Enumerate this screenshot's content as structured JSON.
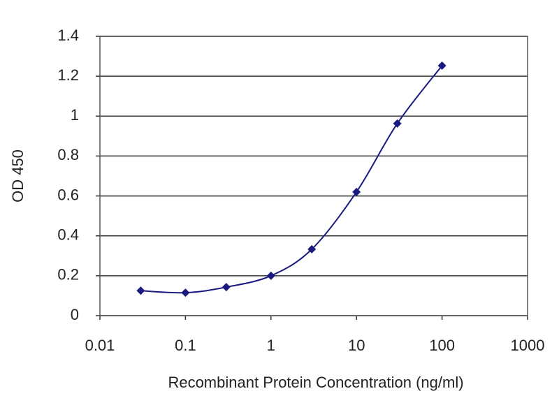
{
  "chart_data": {
    "type": "line",
    "xlabel": "Recombinant Protein Concentration (ng/ml)",
    "ylabel": "OD 450",
    "x": [
      0.03,
      0.1,
      0.3,
      1,
      3,
      10,
      30,
      100
    ],
    "series": [
      {
        "name": "OD 450",
        "color": "#1a1a80",
        "values": [
          0.125,
          0.115,
          0.143,
          0.2,
          0.333,
          0.62,
          0.963,
          1.253
        ]
      }
    ],
    "xscale": "log",
    "xlim": [
      0.01,
      1000
    ],
    "xticks": [
      0.01,
      0.1,
      1,
      10,
      100,
      1000
    ],
    "ylim": [
      0,
      1.4
    ],
    "yticks": [
      0,
      0.2,
      0.4,
      0.6,
      0.8,
      1,
      1.2,
      1.4
    ],
    "grid": true
  }
}
